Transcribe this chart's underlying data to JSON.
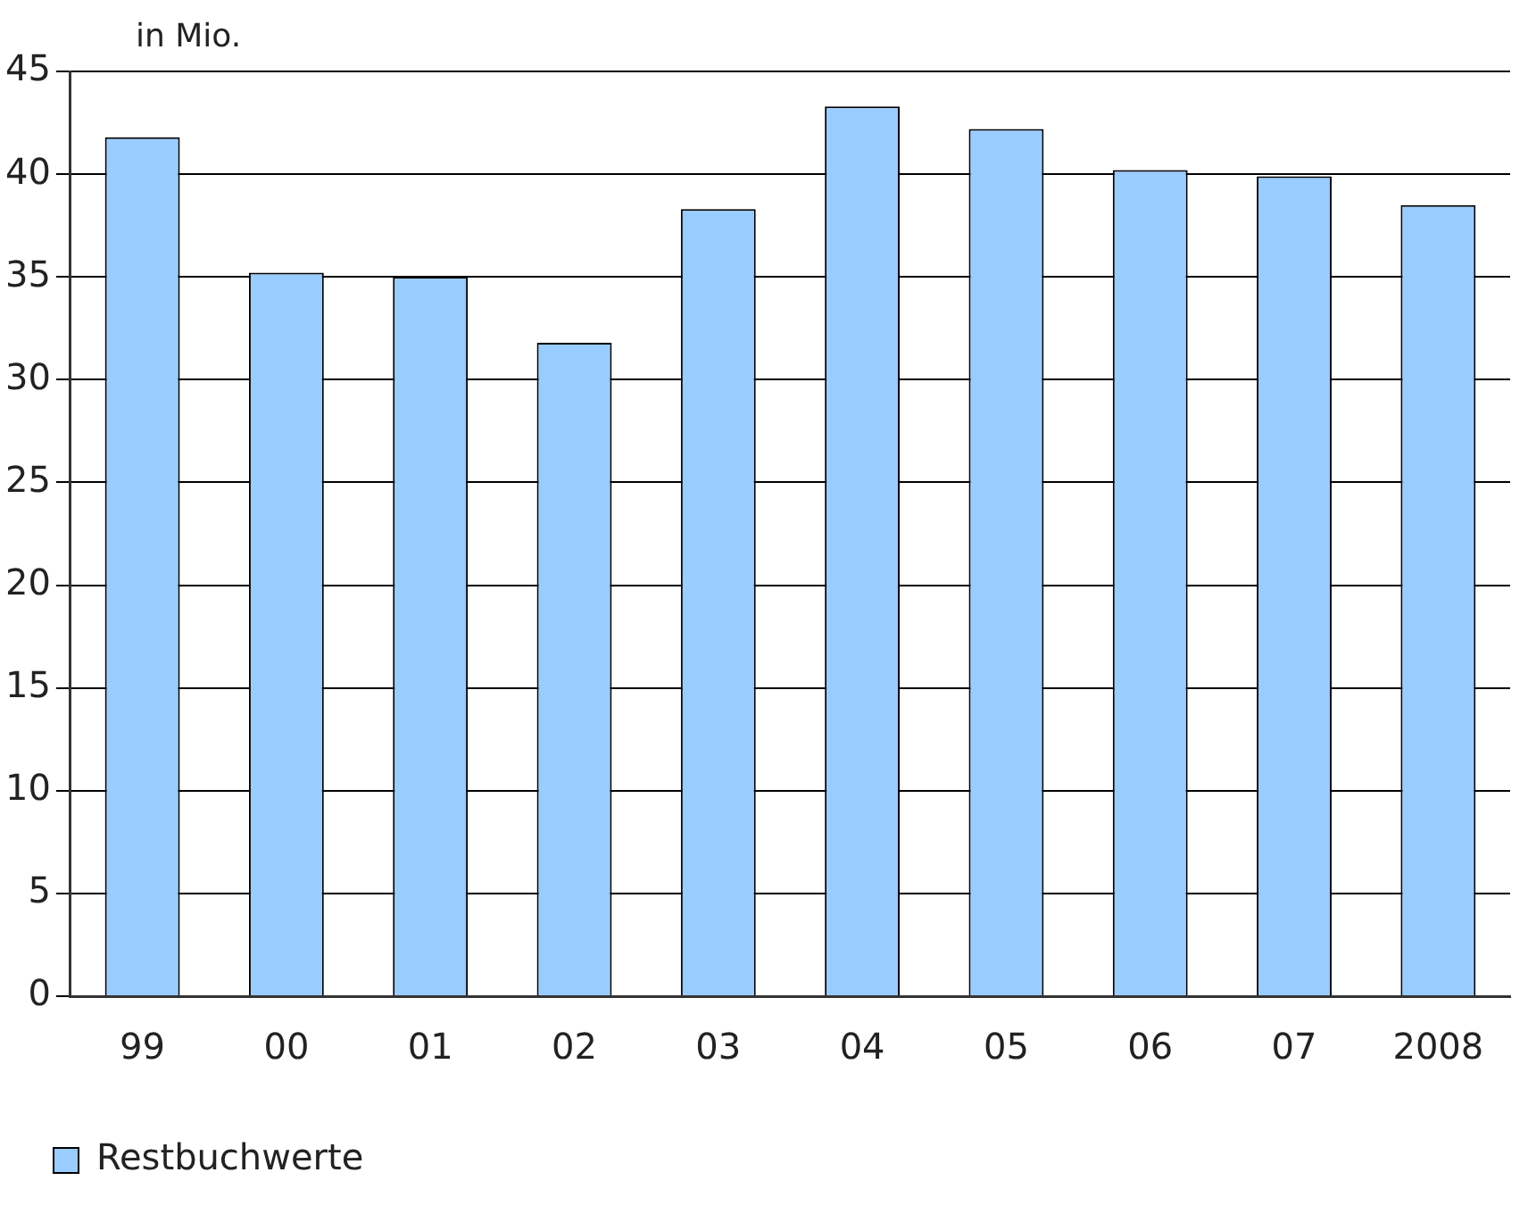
{
  "chart_data": {
    "type": "bar",
    "ylabel": "in Mio.",
    "categories": [
      "99",
      "00",
      "01",
      "02",
      "03",
      "04",
      "05",
      "06",
      "07",
      "2008"
    ],
    "series": [
      {
        "name": "Restbuchwerte",
        "color": "#99ccff",
        "values": [
          41.8,
          35.2,
          35.0,
          31.8,
          38.3,
          43.3,
          42.2,
          40.2,
          39.9,
          38.5
        ]
      }
    ],
    "ylim": [
      0,
      45
    ],
    "yticks": [
      0,
      5,
      10,
      15,
      20,
      25,
      30,
      35,
      40,
      45
    ],
    "grid": "y",
    "legend": "bottom left"
  }
}
